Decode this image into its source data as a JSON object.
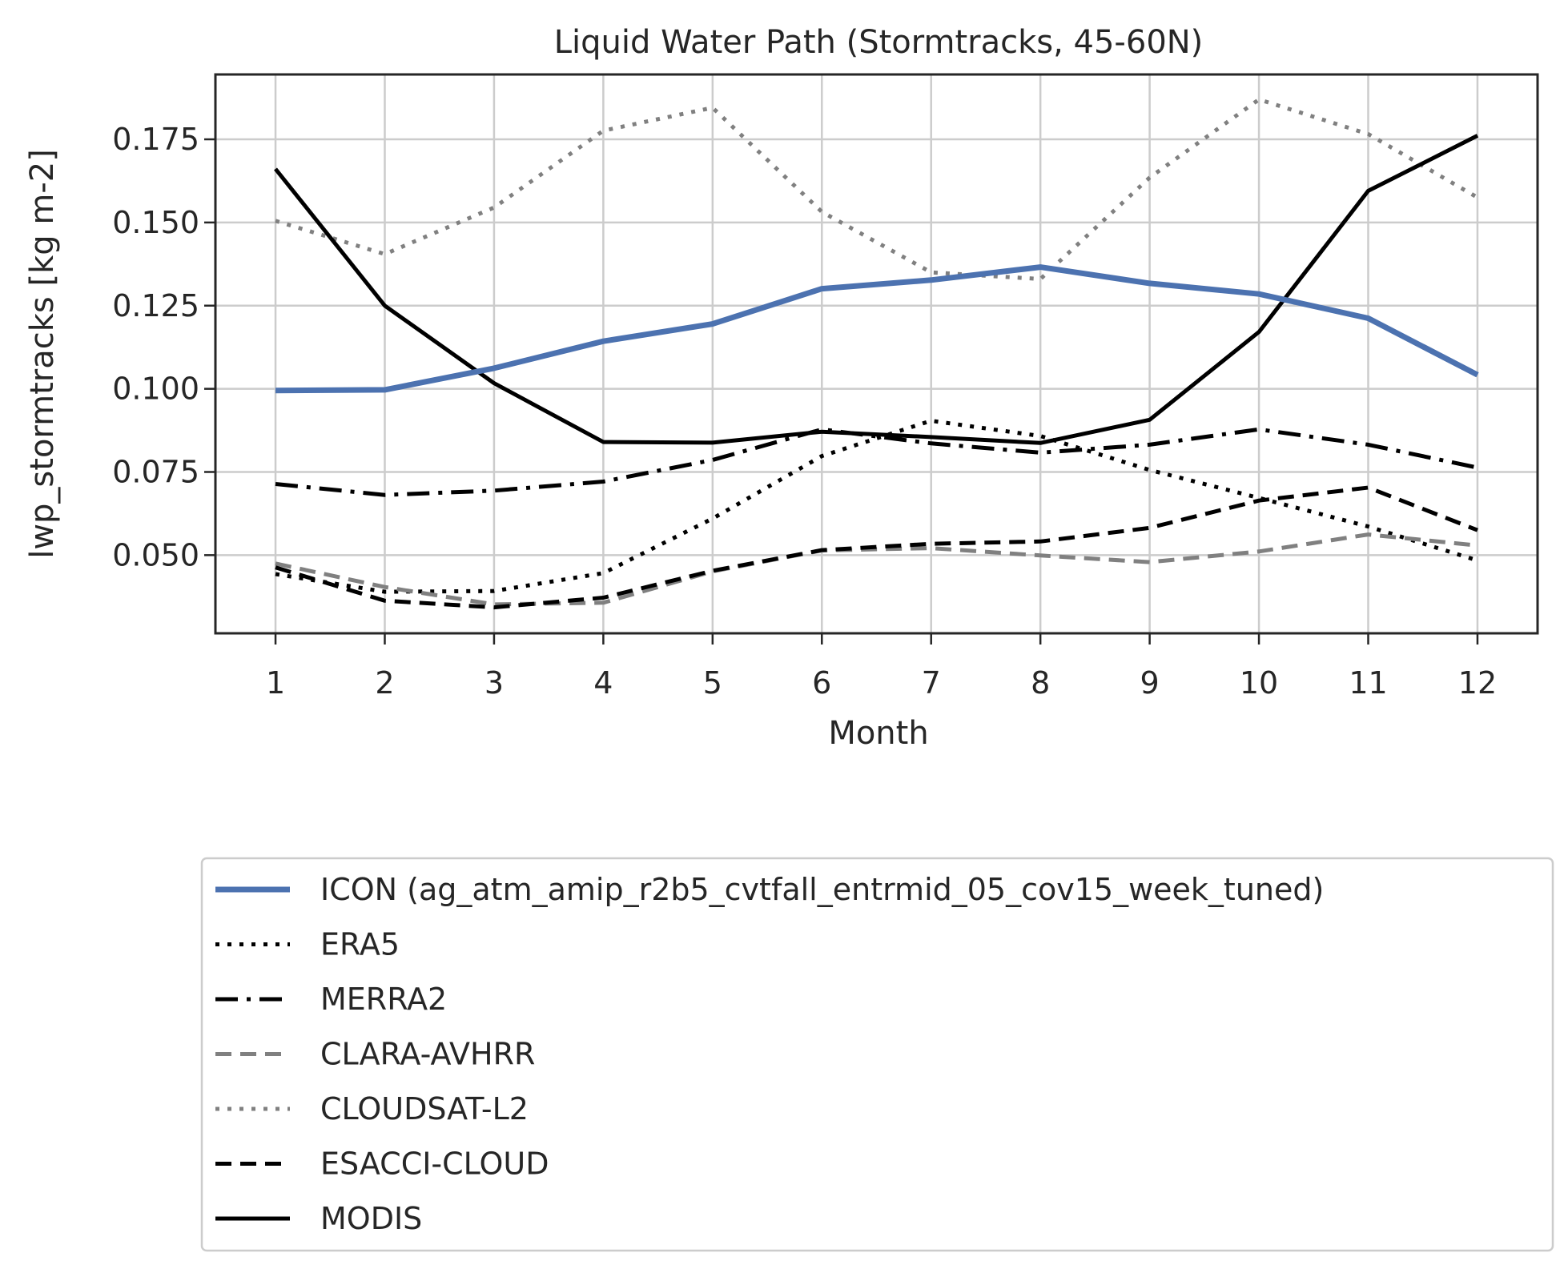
{
  "chart_data": {
    "type": "line",
    "title": "Liquid Water Path (Stormtracks, 45-60N)",
    "xlabel": "Month",
    "ylabel": "lwp_stormtracks [kg m-2]",
    "x": [
      1,
      2,
      3,
      4,
      5,
      6,
      7,
      8,
      9,
      10,
      11,
      12
    ],
    "xticks": [
      "1",
      "2",
      "3",
      "4",
      "5",
      "6",
      "7",
      "8",
      "9",
      "10",
      "11",
      "12"
    ],
    "yticks": [
      "0.050",
      "0.075",
      "0.100",
      "0.125",
      "0.150",
      "0.175"
    ],
    "ytick_values": [
      0.05,
      0.075,
      0.1,
      0.125,
      0.15,
      0.175
    ],
    "xlim": [
      0.45,
      12.55
    ],
    "ylim": [
      0.0265,
      0.1945
    ],
    "grid": true,
    "legend_position": "below",
    "series": [
      {
        "name": "ICON (ag_atm_amip_r2b5_cvtfall_entrmid_05_cov15_week_tuned)",
        "color": "#4c72b0",
        "style": "solid",
        "width": 7,
        "values": [
          0.0995,
          0.0997,
          0.1062,
          0.1143,
          0.1195,
          0.1301,
          0.1327,
          0.1366,
          0.1317,
          0.1285,
          0.1212,
          0.1042
        ]
      },
      {
        "name": "ERA5",
        "color": "#000000",
        "style": "dotted",
        "width": 5,
        "values": [
          0.0443,
          0.039,
          0.0392,
          0.0446,
          0.061,
          0.0798,
          0.0904,
          0.0858,
          0.0756,
          0.0672,
          0.0586,
          0.0484
        ]
      },
      {
        "name": "MERRA2",
        "color": "#000000",
        "style": "dashdot",
        "width": 5,
        "values": [
          0.0714,
          0.0681,
          0.0694,
          0.0721,
          0.0786,
          0.0878,
          0.0836,
          0.0808,
          0.0832,
          0.0878,
          0.0832,
          0.0763
        ]
      },
      {
        "name": "CLARA-AVHRR",
        "color": "#808080",
        "style": "dashed",
        "width": 5,
        "values": [
          0.0475,
          0.0404,
          0.0352,
          0.0357,
          0.0451,
          0.0514,
          0.0521,
          0.0499,
          0.0479,
          0.0511,
          0.0562,
          0.0529
        ]
      },
      {
        "name": "CLOUDSAT-L2",
        "color": "#808080",
        "style": "dotted",
        "width": 5,
        "values": [
          0.1505,
          0.1405,
          0.1545,
          0.1776,
          0.1845,
          0.1532,
          0.135,
          0.133,
          0.1635,
          0.187,
          0.1766,
          0.1575
        ]
      },
      {
        "name": "ESACCI-CLOUD",
        "color": "#000000",
        "style": "dashed",
        "width": 5,
        "values": [
          0.0463,
          0.0363,
          0.0343,
          0.0372,
          0.0453,
          0.0515,
          0.0534,
          0.0541,
          0.0582,
          0.0664,
          0.0703,
          0.0575
        ]
      },
      {
        "name": "MODIS",
        "color": "#000000",
        "style": "solid",
        "width": 5,
        "values": [
          0.1661,
          0.125,
          0.1017,
          0.084,
          0.0838,
          0.0871,
          0.0855,
          0.0837,
          0.0907,
          0.1171,
          0.1595,
          0.1761
        ]
      }
    ]
  }
}
